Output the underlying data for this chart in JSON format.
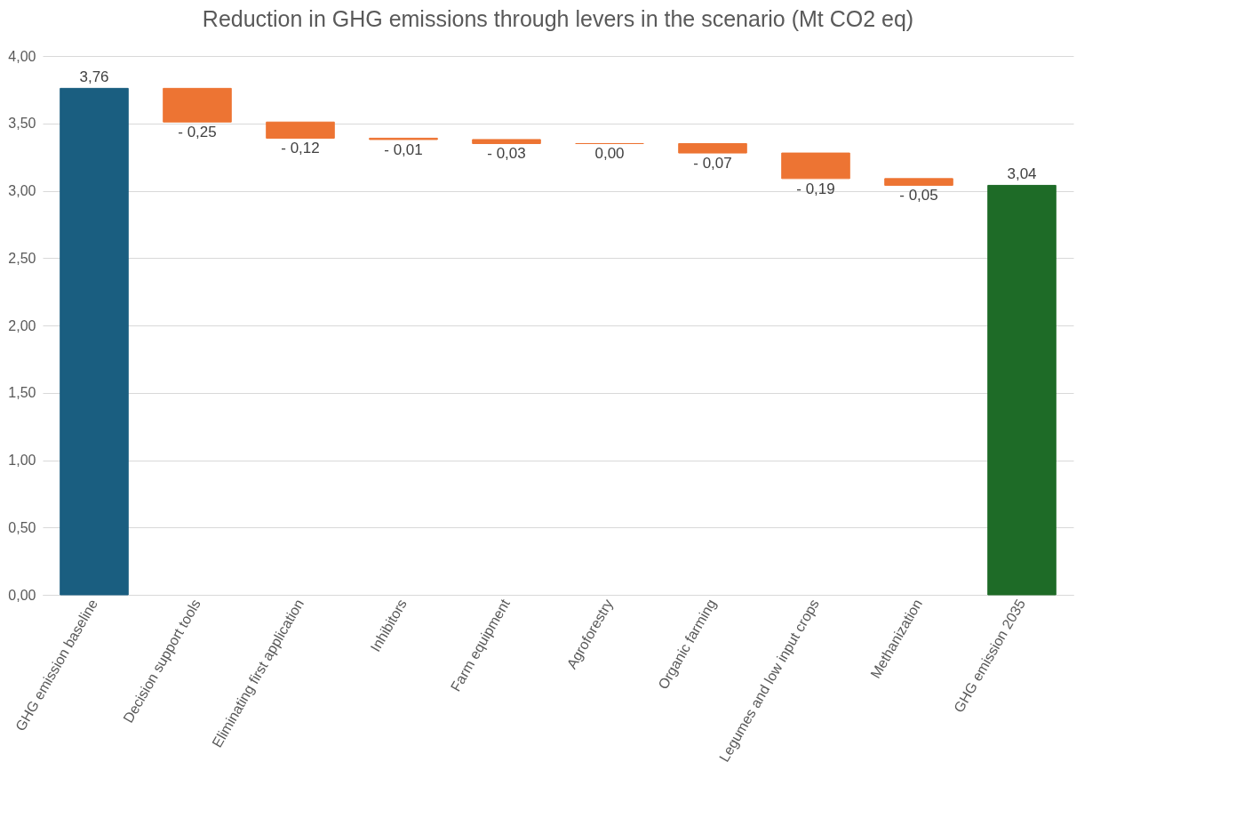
{
  "chart_data": {
    "type": "bar",
    "title": "Reduction in GHG emissions through levers in the scenario (Mt CO2 eq)",
    "categories": [
      "GHG emission baseline",
      "Decision support tools",
      "Eliminating first application",
      "Inhibitors",
      "Farm equipment",
      "Agroforestry",
      "Organic farming",
      "Legumes and low input crops",
      "Methanization",
      "GHG emission 2035"
    ],
    "values": [
      3.76,
      -0.25,
      -0.12,
      -0.01,
      -0.03,
      0.0,
      -0.07,
      -0.19,
      -0.05,
      3.04
    ],
    "base": [
      0,
      3.76,
      3.51,
      3.39,
      3.38,
      3.35,
      3.35,
      3.28,
      3.09,
      0
    ],
    "colors": [
      "#1a5e80",
      "#ed7433",
      "#ed7433",
      "#ed7433",
      "#ed7433",
      "#ed7433",
      "#ed7433",
      "#ed7433",
      "#ed7433",
      "#1e6b27"
    ],
    "value_labels": [
      "3,76",
      "- 0,25",
      "- 0,12",
      "- 0,01",
      "- 0,03",
      "0,00",
      "- 0,07",
      "- 0,19",
      "- 0,05",
      "3,04"
    ],
    "ylim": [
      0,
      4
    ],
    "yticks": [
      {
        "value": 0,
        "label": "0,00"
      },
      {
        "value": 0.5,
        "label": "0,50"
      },
      {
        "value": 1,
        "label": "1,00"
      },
      {
        "value": 1.5,
        "label": "1,50"
      },
      {
        "value": 2,
        "label": "2,00"
      },
      {
        "value": 2.5,
        "label": "2,50"
      },
      {
        "value": 3,
        "label": "3,00"
      },
      {
        "value": 3.5,
        "label": "3,50"
      },
      {
        "value": 4,
        "label": "4,00"
      }
    ],
    "grid": "y"
  }
}
